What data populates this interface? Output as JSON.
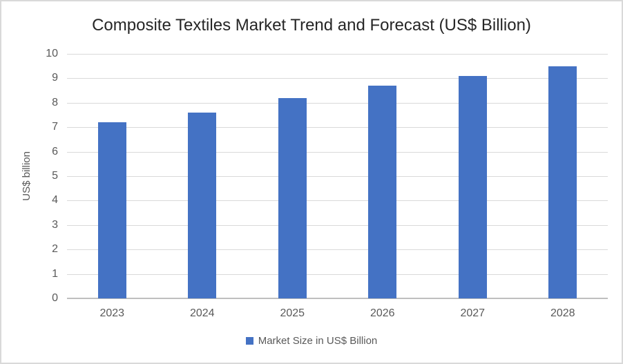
{
  "chart_data": {
    "type": "bar",
    "title": "Composite Textiles Market Trend and Forecast (US$ Billion)",
    "ylabel": "US$ billion",
    "xlabel": "",
    "categories": [
      "2023",
      "2024",
      "2025",
      "2026",
      "2027",
      "2028"
    ],
    "series": [
      {
        "name": "Market Size in US$ Billion",
        "values": [
          7.2,
          7.6,
          8.2,
          8.7,
          9.1,
          9.5
        ]
      }
    ],
    "ylim": [
      0,
      10
    ],
    "yticks": [
      0,
      1,
      2,
      3,
      4,
      5,
      6,
      7,
      8,
      9,
      10
    ],
    "grid": true,
    "legend_position": "bottom"
  },
  "colors": {
    "bar": "#4472C4",
    "gridline": "#D9D9D9",
    "axis_line": "#BFBFBF",
    "tick_label": "#595959",
    "title_text": "#262626",
    "frame_border": "#D9D9D9",
    "background": "#FFFFFF"
  }
}
